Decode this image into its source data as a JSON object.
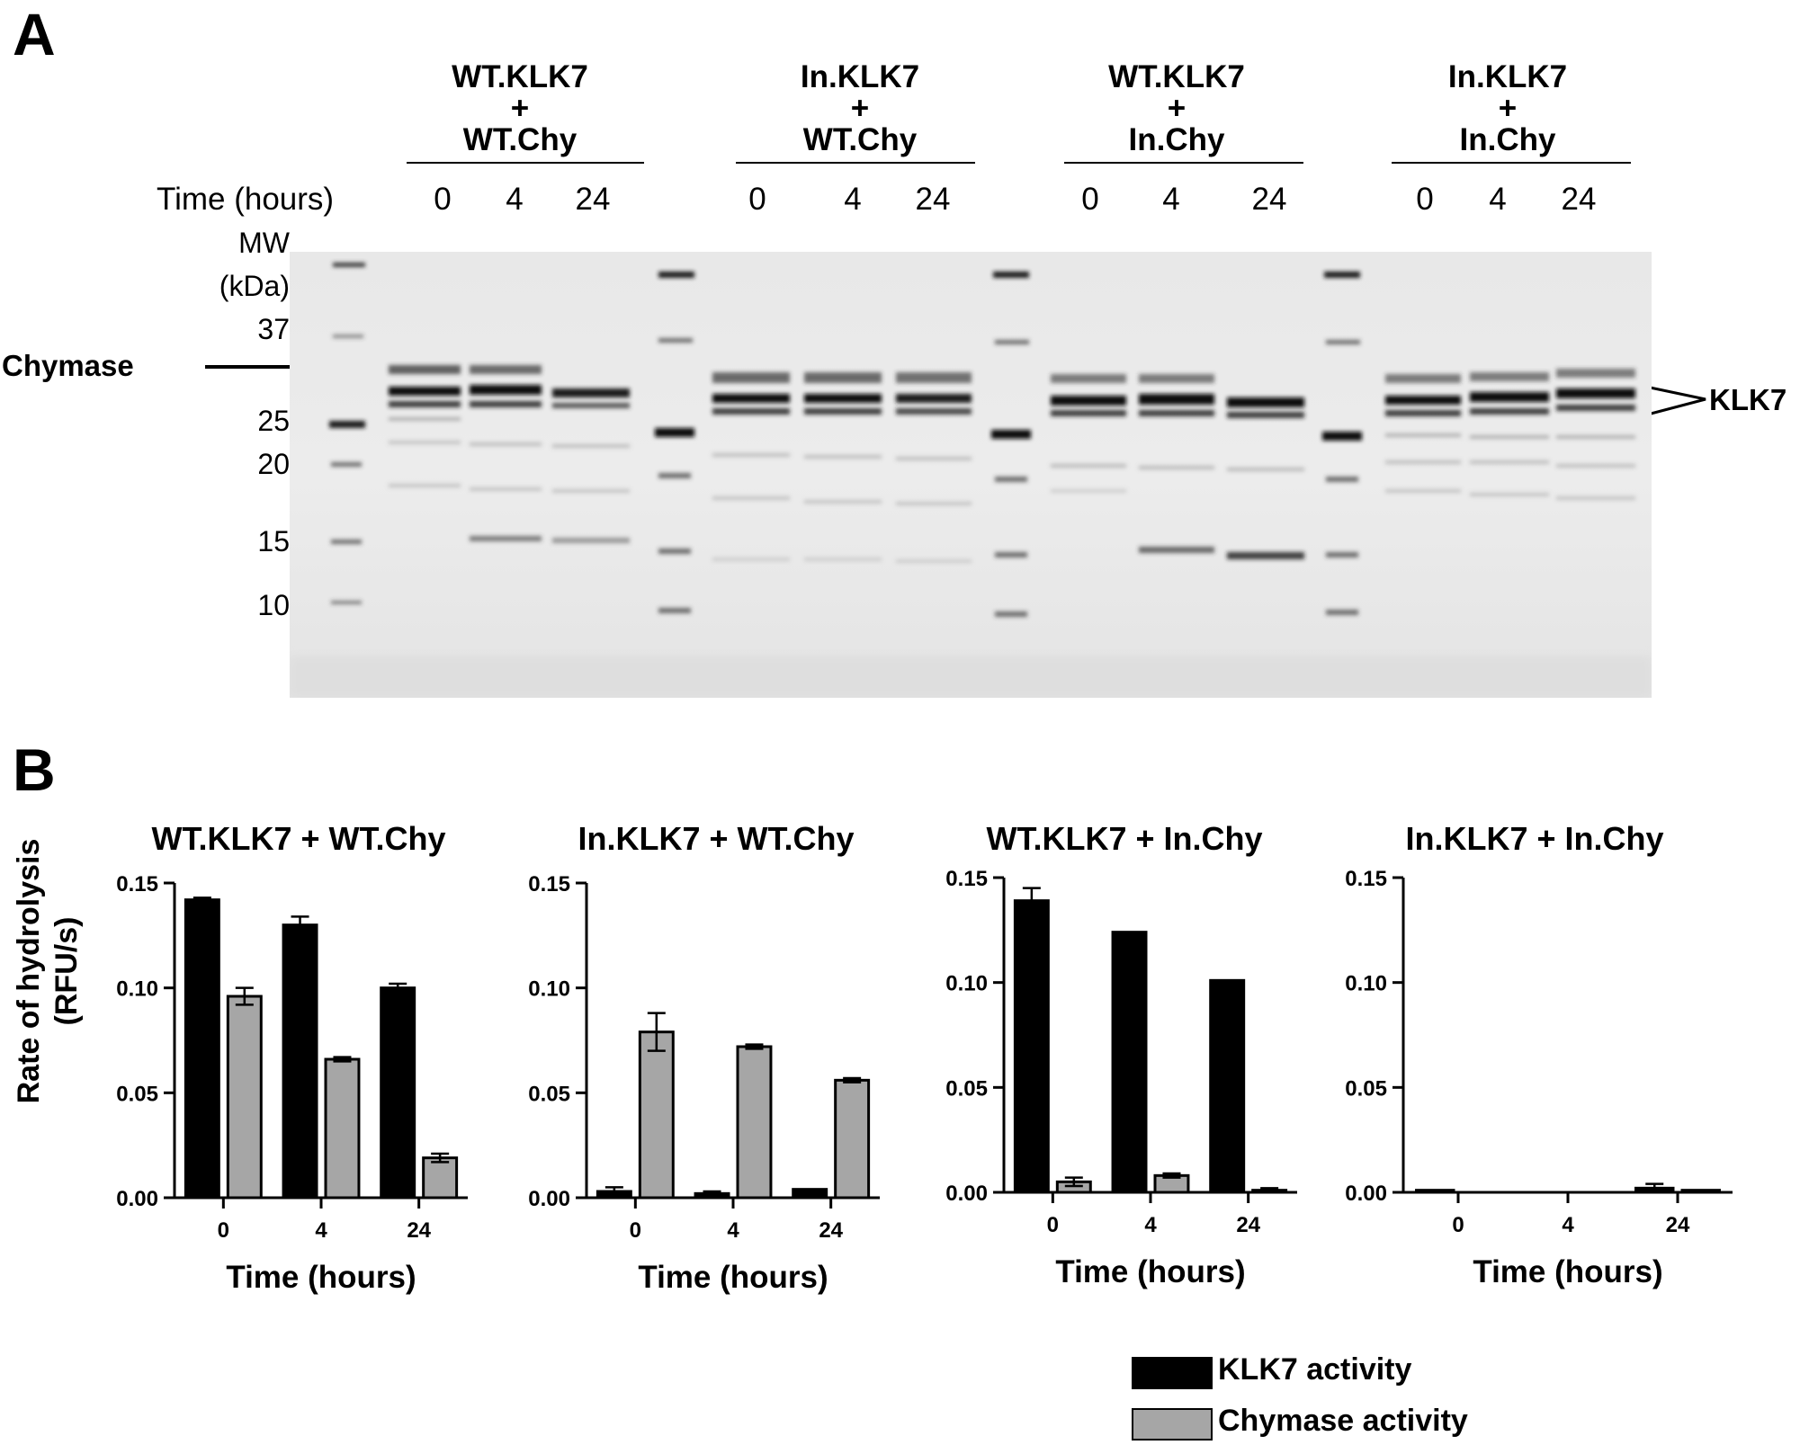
{
  "panel_a": {
    "letter": "A",
    "time_label": "Time (hours)",
    "mw_title_1": "MW",
    "mw_title_2": "(kDa)",
    "mw_values": [
      "37",
      "25",
      "20",
      "15",
      "10"
    ],
    "chymase_label": "Chymase",
    "klk7_label": "KLK7",
    "groups": [
      {
        "line1": "WT.KLK7",
        "line2": "+",
        "line3": "WT.Chy",
        "times": [
          "0",
          "4",
          "24"
        ]
      },
      {
        "line1": "In.KLK7",
        "line2": "+",
        "line3": "WT.Chy",
        "times": [
          "0",
          "4",
          "24"
        ]
      },
      {
        "line1": "WT.KLK7",
        "line2": "+",
        "line3": "In.Chy",
        "times": [
          "0",
          "4",
          "24"
        ]
      },
      {
        "line1": "In.KLK7",
        "line2": "+",
        "line3": "In.Chy",
        "times": [
          "0",
          "4",
          "24"
        ]
      }
    ]
  },
  "panel_b": {
    "letter": "B",
    "ylabel_1": "Rate of hydrolysis",
    "ylabel_2": "(RFU/s)",
    "legend": [
      {
        "label": "KLK7 activity",
        "color": "#000000"
      },
      {
        "label": "Chymase activity",
        "color": "#a6a6a6"
      }
    ]
  },
  "chart_data": [
    {
      "type": "bar",
      "title": "WT.KLK7 + WT.Chy",
      "xlabel": "Time (hours)",
      "ylabel": "Rate of hydrolysis (RFU/s)",
      "categories": [
        "0",
        "4",
        "24"
      ],
      "ylim": [
        0,
        0.15
      ],
      "yticks": [
        "0.00",
        "0.05",
        "0.10",
        "0.15"
      ],
      "series": [
        {
          "name": "KLK7 activity",
          "color": "#000000",
          "values": [
            0.142,
            0.13,
            0.1
          ],
          "errors": [
            0.001,
            0.004,
            0.002
          ]
        },
        {
          "name": "Chymase activity",
          "color": "#a6a6a6",
          "values": [
            0.096,
            0.066,
            0.019
          ],
          "errors": [
            0.004,
            0.001,
            0.002
          ]
        }
      ]
    },
    {
      "type": "bar",
      "title": "In.KLK7 + WT.Chy",
      "xlabel": "Time (hours)",
      "ylabel": "Rate of hydrolysis (RFU/s)",
      "categories": [
        "0",
        "4",
        "24"
      ],
      "ylim": [
        0,
        0.15
      ],
      "yticks": [
        "0.00",
        "0.05",
        "0.10",
        "0.15"
      ],
      "series": [
        {
          "name": "KLK7 activity",
          "color": "#000000",
          "values": [
            0.003,
            0.002,
            0.004
          ],
          "errors": [
            0.002,
            0.001,
            0.0
          ]
        },
        {
          "name": "Chymase activity",
          "color": "#a6a6a6",
          "values": [
            0.079,
            0.072,
            0.056
          ],
          "errors": [
            0.009,
            0.001,
            0.001
          ]
        }
      ]
    },
    {
      "type": "bar",
      "title": "WT.KLK7 + In.Chy",
      "xlabel": "Time (hours)",
      "ylabel": "Rate of hydrolysis (RFU/s)",
      "categories": [
        "0",
        "4",
        "24"
      ],
      "ylim": [
        0,
        0.15
      ],
      "yticks": [
        "0.00",
        "0.05",
        "0.10",
        "0.15"
      ],
      "series": [
        {
          "name": "KLK7 activity",
          "color": "#000000",
          "values": [
            0.139,
            0.124,
            0.101
          ],
          "errors": [
            0.006,
            0.0,
            0.0
          ]
        },
        {
          "name": "Chymase activity",
          "color": "#a6a6a6",
          "values": [
            0.005,
            0.008,
            0.001
          ],
          "errors": [
            0.002,
            0.001,
            0.001
          ]
        }
      ]
    },
    {
      "type": "bar",
      "title": "In.KLK7 + In.Chy",
      "xlabel": "Time (hours)",
      "ylabel": "Rate of hydrolysis (RFU/s)",
      "categories": [
        "0",
        "4",
        "24"
      ],
      "ylim": [
        0,
        0.15
      ],
      "yticks": [
        "0.00",
        "0.05",
        "0.10",
        "0.15"
      ],
      "series": [
        {
          "name": "KLK7 activity",
          "color": "#000000",
          "values": [
            0.001,
            0.0,
            0.002
          ],
          "errors": [
            0.0,
            0.0,
            0.002
          ]
        },
        {
          "name": "Chymase activity",
          "color": "#a6a6a6",
          "values": [
            0.0,
            0.0,
            0.001
          ],
          "errors": [
            0.0,
            0.0,
            0.0
          ]
        }
      ]
    }
  ]
}
